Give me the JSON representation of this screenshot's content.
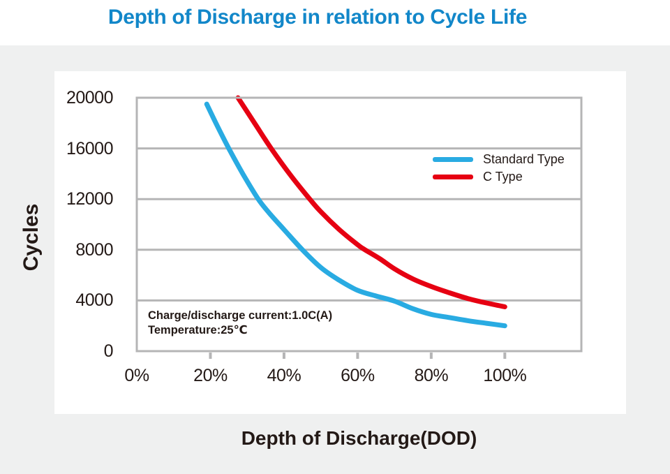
{
  "title": {
    "text": "Depth of Discharge in relation to Cycle Life",
    "color": "#1287c9"
  },
  "annotation": {
    "line1": "Charge/discharge current:1.0C(A)",
    "line2": "Temperature:25℃"
  },
  "colors": {
    "title_blue": "#1287c9",
    "standard_type_blue": "#29abe2",
    "c_type_red": "#e60012",
    "grid_gray": "#b5b5b6",
    "text_dark": "#231916",
    "panel_background": "#ffffff",
    "page_band_background": "#eff0f0"
  },
  "chart_data": {
    "type": "line",
    "title": "Depth of Discharge in relation to Cycle Life",
    "xlabel": "Depth of Discharge(DOD)",
    "ylabel": "Cycles",
    "xlim": [
      0,
      120.8
    ],
    "ylim": [
      0,
      20000
    ],
    "x_tick_values": [
      0,
      20,
      40,
      60,
      80,
      100
    ],
    "x_tick_labels": [
      "0%",
      "20%",
      "40%",
      "60%",
      "80%",
      "100%"
    ],
    "y_tick_values": [
      0,
      4000,
      8000,
      12000,
      16000,
      20000
    ],
    "y_tick_labels": [
      "0",
      "4000",
      "8000",
      "12000",
      "16000",
      "20000"
    ],
    "grid": "horizontal",
    "legend_position": "inside-top-right",
    "series": [
      {
        "name": "Standard Type",
        "color": "#29abe2",
        "points": [
          [
            19,
            19500
          ],
          [
            22,
            17700
          ],
          [
            25,
            16000
          ],
          [
            29,
            13900
          ],
          [
            33,
            12000
          ],
          [
            36,
            10900
          ],
          [
            40,
            9600
          ],
          [
            45,
            8000
          ],
          [
            50,
            6600
          ],
          [
            55,
            5600
          ],
          [
            60,
            4800
          ],
          [
            65,
            4350
          ],
          [
            70,
            3950
          ],
          [
            75,
            3350
          ],
          [
            80,
            2900
          ],
          [
            85,
            2650
          ],
          [
            90,
            2400
          ],
          [
            95,
            2200
          ],
          [
            100,
            2000
          ]
        ]
      },
      {
        "name": "C Type",
        "color": "#e60012",
        "points": [
          [
            27.5,
            20000
          ],
          [
            32,
            18000
          ],
          [
            36.5,
            16000
          ],
          [
            42,
            13800
          ],
          [
            47,
            12000
          ],
          [
            50,
            11000
          ],
          [
            55,
            9600
          ],
          [
            60,
            8400
          ],
          [
            62,
            8000
          ],
          [
            66,
            7300
          ],
          [
            70,
            6500
          ],
          [
            75,
            5700
          ],
          [
            80,
            5100
          ],
          [
            85,
            4600
          ],
          [
            90,
            4150
          ],
          [
            95,
            3800
          ],
          [
            100,
            3500
          ]
        ]
      }
    ]
  }
}
